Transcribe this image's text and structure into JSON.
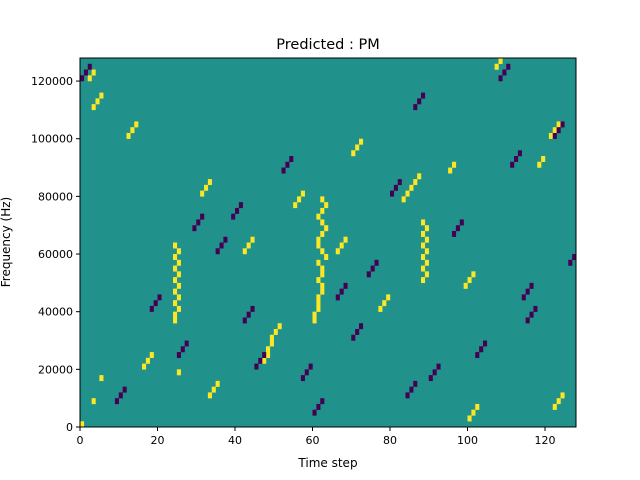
{
  "chart_data": {
    "type": "heatmap",
    "title": "Predicted : PM",
    "xlabel": "Time step",
    "ylabel": "Frequency (Hz)",
    "xlim": [
      0,
      128
    ],
    "ylim": [
      0,
      128000
    ],
    "x_ticks": [
      0,
      20,
      40,
      60,
      80,
      100,
      120
    ],
    "y_ticks": [
      0,
      20000,
      40000,
      60000,
      80000,
      100000,
      120000
    ],
    "x_tick_labels": [
      "0",
      "20",
      "40",
      "60",
      "80",
      "100",
      "120"
    ],
    "y_tick_labels": [
      "0",
      "20000",
      "40000",
      "60000",
      "80000",
      "100000",
      "120000"
    ],
    "n_time_steps": 128,
    "n_freq_bins": 64,
    "colormap": "viridis",
    "value_levels": [
      -1,
      0,
      1
    ],
    "colors": {
      "low": "#440154",
      "mid": "#21918c",
      "high": "#fde725"
    },
    "background_value": 0,
    "grid": false,
    "note_cells": {
      "high": [
        [
          0,
          0
        ],
        [
          3,
          4
        ],
        [
          5,
          8
        ],
        [
          25,
          9
        ],
        [
          47,
          11
        ],
        [
          48,
          12
        ],
        [
          48,
          13
        ],
        [
          49,
          14
        ],
        [
          49,
          15
        ],
        [
          50,
          16
        ],
        [
          51,
          17
        ],
        [
          60,
          18
        ],
        [
          60,
          19
        ],
        [
          61,
          20
        ],
        [
          61,
          21
        ],
        [
          61,
          22
        ],
        [
          62,
          23
        ],
        [
          62,
          24
        ],
        [
          61,
          25
        ],
        [
          62,
          26
        ],
        [
          62,
          27
        ],
        [
          61,
          28
        ],
        [
          63,
          29
        ],
        [
          62,
          30
        ],
        [
          61,
          31
        ],
        [
          61,
          32
        ],
        [
          62,
          33
        ],
        [
          63,
          34
        ],
        [
          62,
          35
        ],
        [
          61,
          36
        ],
        [
          62,
          37
        ],
        [
          63,
          38
        ],
        [
          62,
          39
        ],
        [
          24,
          18
        ],
        [
          24,
          19
        ],
        [
          25,
          20
        ],
        [
          24,
          21
        ],
        [
          25,
          22
        ],
        [
          24,
          23
        ],
        [
          25,
          24
        ],
        [
          24,
          25
        ],
        [
          25,
          26
        ],
        [
          24,
          27
        ],
        [
          25,
          28
        ],
        [
          24,
          29
        ],
        [
          25,
          30
        ],
        [
          24,
          31
        ],
        [
          88,
          25
        ],
        [
          89,
          26
        ],
        [
          88,
          27
        ],
        [
          89,
          28
        ],
        [
          88,
          29
        ],
        [
          89,
          30
        ],
        [
          88,
          31
        ],
        [
          89,
          32
        ],
        [
          88,
          33
        ],
        [
          89,
          34
        ],
        [
          88,
          35
        ],
        [
          99,
          24
        ],
        [
          100,
          25
        ],
        [
          101,
          26
        ],
        [
          12,
          50
        ],
        [
          13,
          51
        ],
        [
          14,
          52
        ],
        [
          3,
          55
        ],
        [
          4,
          56
        ],
        [
          5,
          57
        ],
        [
          31,
          40
        ],
        [
          32,
          41
        ],
        [
          33,
          42
        ],
        [
          2,
          60
        ],
        [
          3,
          61
        ],
        [
          107,
          62
        ],
        [
          108,
          63
        ],
        [
          118,
          45
        ],
        [
          119,
          46
        ],
        [
          83,
          39
        ],
        [
          84,
          40
        ],
        [
          85,
          41
        ],
        [
          86,
          42
        ],
        [
          87,
          43
        ],
        [
          95,
          44
        ],
        [
          96,
          45
        ],
        [
          42,
          30
        ],
        [
          43,
          31
        ],
        [
          44,
          32
        ],
        [
          70,
          47
        ],
        [
          71,
          48
        ],
        [
          72,
          49
        ],
        [
          16,
          10
        ],
        [
          17,
          11
        ],
        [
          18,
          12
        ],
        [
          122,
          3
        ],
        [
          123,
          4
        ],
        [
          124,
          5
        ],
        [
          100,
          1
        ],
        [
          101,
          2
        ],
        [
          102,
          3
        ],
        [
          33,
          5
        ],
        [
          34,
          6
        ],
        [
          35,
          7
        ],
        [
          55,
          38
        ],
        [
          56,
          39
        ],
        [
          57,
          40
        ],
        [
          66,
          30
        ],
        [
          67,
          31
        ],
        [
          68,
          32
        ],
        [
          77,
          20
        ],
        [
          78,
          21
        ],
        [
          79,
          22
        ],
        [
          121,
          50
        ],
        [
          122,
          51
        ],
        [
          123,
          52
        ]
      ],
      "low": [
        [
          39,
          36
        ],
        [
          40,
          37
        ],
        [
          41,
          38
        ],
        [
          80,
          40
        ],
        [
          81,
          41
        ],
        [
          82,
          42
        ],
        [
          111,
          45
        ],
        [
          112,
          46
        ],
        [
          113,
          47
        ],
        [
          122,
          50
        ],
        [
          123,
          51
        ],
        [
          124,
          52
        ],
        [
          45,
          10
        ],
        [
          46,
          11
        ],
        [
          47,
          12
        ],
        [
          60,
          2
        ],
        [
          61,
          3
        ],
        [
          62,
          4
        ],
        [
          29,
          34
        ],
        [
          30,
          35
        ],
        [
          31,
          36
        ],
        [
          35,
          30
        ],
        [
          36,
          31
        ],
        [
          37,
          32
        ],
        [
          66,
          22
        ],
        [
          67,
          23
        ],
        [
          68,
          24
        ],
        [
          70,
          15
        ],
        [
          71,
          16
        ],
        [
          72,
          17
        ],
        [
          90,
          8
        ],
        [
          91,
          9
        ],
        [
          92,
          10
        ],
        [
          102,
          12
        ],
        [
          103,
          13
        ],
        [
          104,
          14
        ],
        [
          115,
          18
        ],
        [
          116,
          19
        ],
        [
          117,
          20
        ],
        [
          9,
          4
        ],
        [
          10,
          5
        ],
        [
          11,
          6
        ],
        [
          18,
          20
        ],
        [
          19,
          21
        ],
        [
          20,
          22
        ],
        [
          52,
          44
        ],
        [
          53,
          45
        ],
        [
          54,
          46
        ],
        [
          86,
          55
        ],
        [
          87,
          56
        ],
        [
          88,
          57
        ],
        [
          108,
          60
        ],
        [
          109,
          61
        ],
        [
          110,
          62
        ],
        [
          126,
          28
        ],
        [
          127,
          29
        ],
        [
          0,
          60
        ],
        [
          1,
          61
        ],
        [
          2,
          62
        ],
        [
          25,
          12
        ],
        [
          26,
          13
        ],
        [
          27,
          14
        ],
        [
          57,
          8
        ],
        [
          58,
          9
        ],
        [
          59,
          10
        ],
        [
          96,
          33
        ],
        [
          97,
          34
        ],
        [
          98,
          35
        ],
        [
          114,
          22
        ],
        [
          115,
          23
        ],
        [
          116,
          24
        ],
        [
          42,
          18
        ],
        [
          43,
          19
        ],
        [
          44,
          20
        ],
        [
          74,
          26
        ],
        [
          75,
          27
        ],
        [
          76,
          28
        ],
        [
          84,
          5
        ],
        [
          85,
          6
        ],
        [
          86,
          7
        ]
      ]
    }
  }
}
